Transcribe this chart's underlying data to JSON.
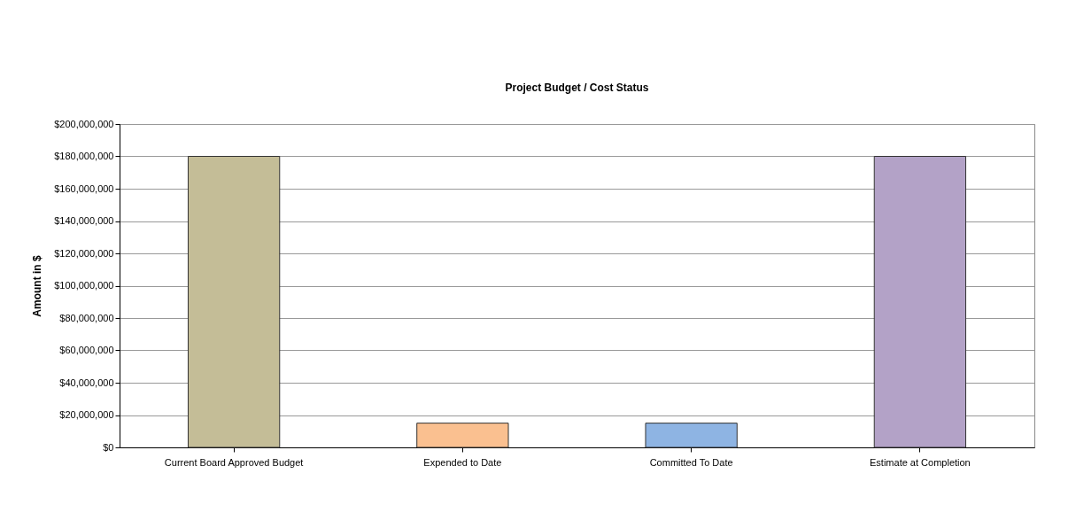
{
  "chart_data": {
    "type": "bar",
    "title": "Project Budget / Cost Status",
    "ylabel": "Amount in $",
    "categories": [
      "Current Board Approved Budget",
      "Expended to Date",
      "Committed To Date",
      "Estimate at Completion"
    ],
    "values": [
      180000000,
      15000000,
      15000000,
      180000000
    ],
    "colors": [
      "#c4bd97",
      "#fac090",
      "#8eb4e3",
      "#b3a2c7"
    ],
    "ylim": [
      0,
      200000000
    ],
    "yticks": [
      {
        "value": 0,
        "label": "$0"
      },
      {
        "value": 20000000,
        "label": "$20,000,000"
      },
      {
        "value": 40000000,
        "label": "$40,000,000"
      },
      {
        "value": 60000000,
        "label": "$60,000,000"
      },
      {
        "value": 80000000,
        "label": "$80,000,000"
      },
      {
        "value": 100000000,
        "label": "$100,000,000"
      },
      {
        "value": 120000000,
        "label": "$120,000,000"
      },
      {
        "value": 140000000,
        "label": "$140,000,000"
      },
      {
        "value": 160000000,
        "label": "$160,000,000"
      },
      {
        "value": 180000000,
        "label": "$180,000,000"
      },
      {
        "value": 200000000,
        "label": "$200,000,000"
      }
    ],
    "grid": "y",
    "legend": false
  }
}
